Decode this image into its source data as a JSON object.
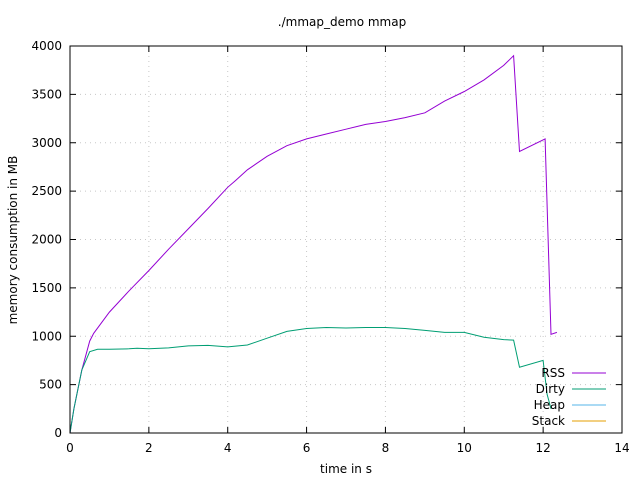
{
  "chart_data": {
    "type": "line",
    "title": "./mmap_demo mmap",
    "xlabel": "time in s",
    "ylabel": "memory consumption in MB",
    "xlim": [
      0,
      14
    ],
    "ylim": [
      0,
      4000
    ],
    "xticks": [
      0,
      2,
      4,
      6,
      8,
      10,
      12,
      14
    ],
    "yticks": [
      0,
      500,
      1000,
      1500,
      2000,
      2500,
      3000,
      3500,
      4000
    ],
    "grid": true,
    "legend_position": "bottom-right",
    "series": [
      {
        "name": "RSS",
        "color": "#9400d3",
        "points": [
          [
            0,
            0
          ],
          [
            0.1,
            250
          ],
          [
            0.3,
            650
          ],
          [
            0.5,
            950
          ],
          [
            0.6,
            1030
          ],
          [
            1,
            1250
          ],
          [
            1.5,
            1470
          ],
          [
            2,
            1680
          ],
          [
            2.5,
            1900
          ],
          [
            3,
            2110
          ],
          [
            3.5,
            2320
          ],
          [
            4,
            2540
          ],
          [
            4.2,
            2610
          ],
          [
            4.5,
            2720
          ],
          [
            5,
            2860
          ],
          [
            5.5,
            2970
          ],
          [
            6,
            3040
          ],
          [
            6.5,
            3090
          ],
          [
            7,
            3140
          ],
          [
            7.5,
            3190
          ],
          [
            8,
            3220
          ],
          [
            8.5,
            3260
          ],
          [
            9,
            3310
          ],
          [
            9.5,
            3430
          ],
          [
            10,
            3530
          ],
          [
            10.5,
            3650
          ],
          [
            11,
            3800
          ],
          [
            11.25,
            3900
          ],
          [
            11.4,
            2910
          ],
          [
            12.05,
            3040
          ],
          [
            12.2,
            1020
          ],
          [
            12.35,
            1040
          ]
        ]
      },
      {
        "name": "Dirty",
        "color": "#009e73",
        "points": [
          [
            0,
            0
          ],
          [
            0.1,
            250
          ],
          [
            0.3,
            650
          ],
          [
            0.5,
            840
          ],
          [
            0.7,
            865
          ],
          [
            1,
            865
          ],
          [
            1.5,
            870
          ],
          [
            1.7,
            875
          ],
          [
            2,
            870
          ],
          [
            2.5,
            880
          ],
          [
            3,
            900
          ],
          [
            3.5,
            905
          ],
          [
            4,
            890
          ],
          [
            4.5,
            910
          ],
          [
            5,
            980
          ],
          [
            5.5,
            1050
          ],
          [
            6,
            1080
          ],
          [
            6.5,
            1090
          ],
          [
            7,
            1085
          ],
          [
            7.5,
            1090
          ],
          [
            8,
            1090
          ],
          [
            8.5,
            1080
          ],
          [
            9,
            1060
          ],
          [
            9.5,
            1040
          ],
          [
            10,
            1040
          ],
          [
            10.5,
            990
          ],
          [
            11,
            965
          ],
          [
            11.25,
            960
          ],
          [
            11.4,
            680
          ],
          [
            12,
            750
          ],
          [
            12.1,
            400
          ],
          [
            12.2,
            250
          ]
        ]
      },
      {
        "name": "Heap",
        "color": "#56b4e9",
        "points": [
          [
            0,
            0
          ],
          [
            12.35,
            0
          ]
        ]
      },
      {
        "name": "Stack",
        "color": "#e69f00",
        "points": [
          [
            0,
            0
          ],
          [
            12.35,
            0
          ]
        ]
      }
    ]
  }
}
